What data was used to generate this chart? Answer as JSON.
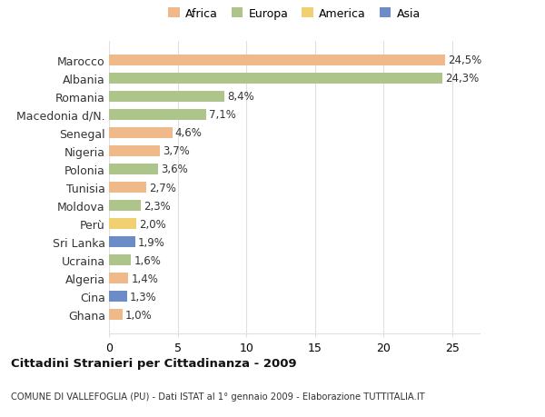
{
  "countries": [
    "Ghana",
    "Cina",
    "Algeria",
    "Ucraina",
    "Sri Lanka",
    "Perù",
    "Moldova",
    "Tunisia",
    "Polonia",
    "Nigeria",
    "Senegal",
    "Macedonia d/N.",
    "Romania",
    "Albania",
    "Marocco"
  ],
  "values": [
    1.0,
    1.3,
    1.4,
    1.6,
    1.9,
    2.0,
    2.3,
    2.7,
    3.6,
    3.7,
    4.6,
    7.1,
    8.4,
    24.3,
    24.5
  ],
  "labels": [
    "1,0%",
    "1,3%",
    "1,4%",
    "1,6%",
    "1,9%",
    "2,0%",
    "2,3%",
    "2,7%",
    "3,6%",
    "3,7%",
    "4,6%",
    "7,1%",
    "8,4%",
    "24,3%",
    "24,5%"
  ],
  "colors": [
    "#f0b989",
    "#6b8cc7",
    "#f0b989",
    "#adc48a",
    "#6b8cc7",
    "#f0d070",
    "#adc48a",
    "#f0b989",
    "#adc48a",
    "#f0b989",
    "#f0b989",
    "#adc48a",
    "#adc48a",
    "#adc48a",
    "#f0b989"
  ],
  "legend_labels": [
    "Africa",
    "Europa",
    "America",
    "Asia"
  ],
  "legend_colors": [
    "#f0b989",
    "#adc48a",
    "#f0d070",
    "#6b8cc7"
  ],
  "title": "Cittadini Stranieri per Cittadinanza - 2009",
  "subtitle": "COMUNE DI VALLEFOGLIA (PU) - Dati ISTAT al 1° gennaio 2009 - Elaborazione TUTTITALIA.IT",
  "xlim": [
    0,
    27
  ],
  "background_color": "#ffffff",
  "bar_height": 0.6,
  "grid_color": "#e0e0e0",
  "tick_fontsize": 9,
  "label_fontsize": 8.5
}
